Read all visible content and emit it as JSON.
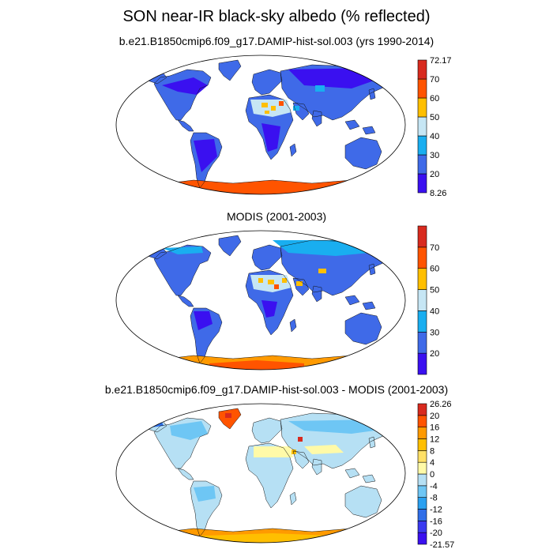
{
  "figure": {
    "title": "SON near-IR black-sky albedo (% reflected)"
  },
  "panels": [
    {
      "title": "b.e21.B1850cmip6.f09_g17.DAMIP-hist-sol.003 (yrs 1990-2014)",
      "kind": "field",
      "colorbar": {
        "colors": [
          "#3a10f0",
          "#3f6ae8",
          "#19aef0",
          "#c6e6f4",
          "#ffbf00",
          "#ff5400",
          "#d82a1e"
        ],
        "labels": [
          "8.26",
          "20",
          "30",
          "40",
          "50",
          "60",
          "70",
          "72.17"
        ]
      },
      "antarctic_color": "#ff5400",
      "sahara_color": "#c6e6f4"
    },
    {
      "title": "MODIS (2001-2003)",
      "kind": "field",
      "colorbar": {
        "colors": [
          "#3a10f0",
          "#3f6ae8",
          "#19aef0",
          "#c6e6f4",
          "#ffbf00",
          "#ff5400",
          "#d82a1e"
        ],
        "labels": [
          "",
          "20",
          "30",
          "40",
          "50",
          "60",
          "70",
          ""
        ]
      },
      "antarctic_color": "#ff9a00",
      "sahara_color": "#c6e6f4"
    },
    {
      "title": "b.e21.B1850cmip6.f09_g17.DAMIP-hist-sol.003 - MODIS (2001-2003)",
      "kind": "difference",
      "colorbar": {
        "colors": [
          "#3a10f0",
          "#3a3af0",
          "#2f6ee8",
          "#2aa0f0",
          "#6ec6f4",
          "#b6e0f4",
          "#fffaa8",
          "#ffe066",
          "#ffbf00",
          "#ff9a00",
          "#ff5400",
          "#d82a1e"
        ],
        "labels": [
          "-21.57",
          "-20",
          "-16",
          "-12",
          "-8",
          "-4",
          "0",
          "4",
          "8",
          "12",
          "16",
          "20",
          "26.26"
        ]
      },
      "antarctic_color": "#ff9a00",
      "greenland_color": "#ff5400"
    }
  ]
}
